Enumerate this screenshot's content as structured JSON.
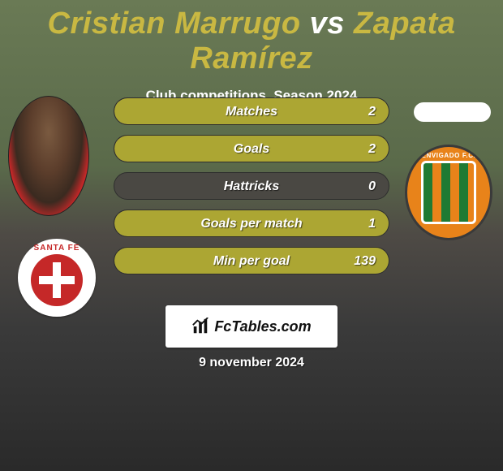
{
  "title": {
    "player1": "Cristian Marrugo",
    "vs": "vs",
    "player2": "Zapata Ramírez"
  },
  "subtitle": "Club competitions, Season 2024",
  "accent_color": "#c9b842",
  "bar_fill_color": "#aca633",
  "bar_track_color": "#4a4843",
  "bars": [
    {
      "label": "Matches",
      "fill_pct": 100,
      "v1": "",
      "v2": "2"
    },
    {
      "label": "Goals",
      "fill_pct": 100,
      "v1": "",
      "v2": "2"
    },
    {
      "label": "Hattricks",
      "fill_pct": 0,
      "v1": "",
      "v2": "0"
    },
    {
      "label": "Goals per match",
      "fill_pct": 100,
      "v1": "",
      "v2": "1"
    },
    {
      "label": "Min per goal",
      "fill_pct": 100,
      "v1": "",
      "v2": "139"
    }
  ],
  "badges": {
    "left": {
      "name": "SANTA FE",
      "primary": "#c52828",
      "secondary": "#ffffff"
    },
    "right": {
      "name": "ENVIGADO F.C.",
      "primary": "#e8831a",
      "secondary": "#1f7a33"
    }
  },
  "branding": {
    "site": "FcTables.com"
  },
  "date": "9 november 2024"
}
